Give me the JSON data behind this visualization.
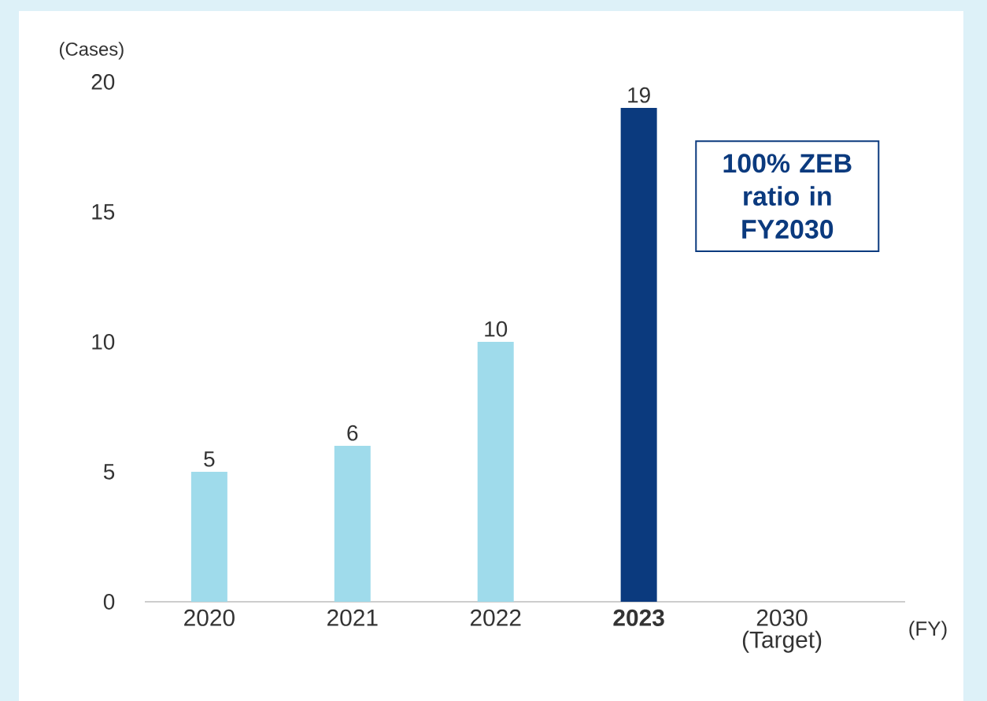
{
  "chart_data": {
    "type": "bar",
    "categories": [
      "2020",
      "2021",
      "2022",
      "**2023**",
      "2030 (Target)"
    ],
    "values": [
      5,
      6,
      10,
      19,
      null
    ],
    "colors": [
      "#9fdbeb",
      "#9fdbeb",
      "#9fdbeb",
      "#0b3a7e",
      "#9fdbeb"
    ],
    "data_labels": true,
    "ylim": [
      0,
      20
    ],
    "yticks": [
      0,
      5,
      10,
      15,
      20
    ],
    "ylabel": "(Cases)",
    "xlabel": "(FY)",
    "annotations": [
      "100% ZEB ratio in FY2030"
    ]
  }
}
